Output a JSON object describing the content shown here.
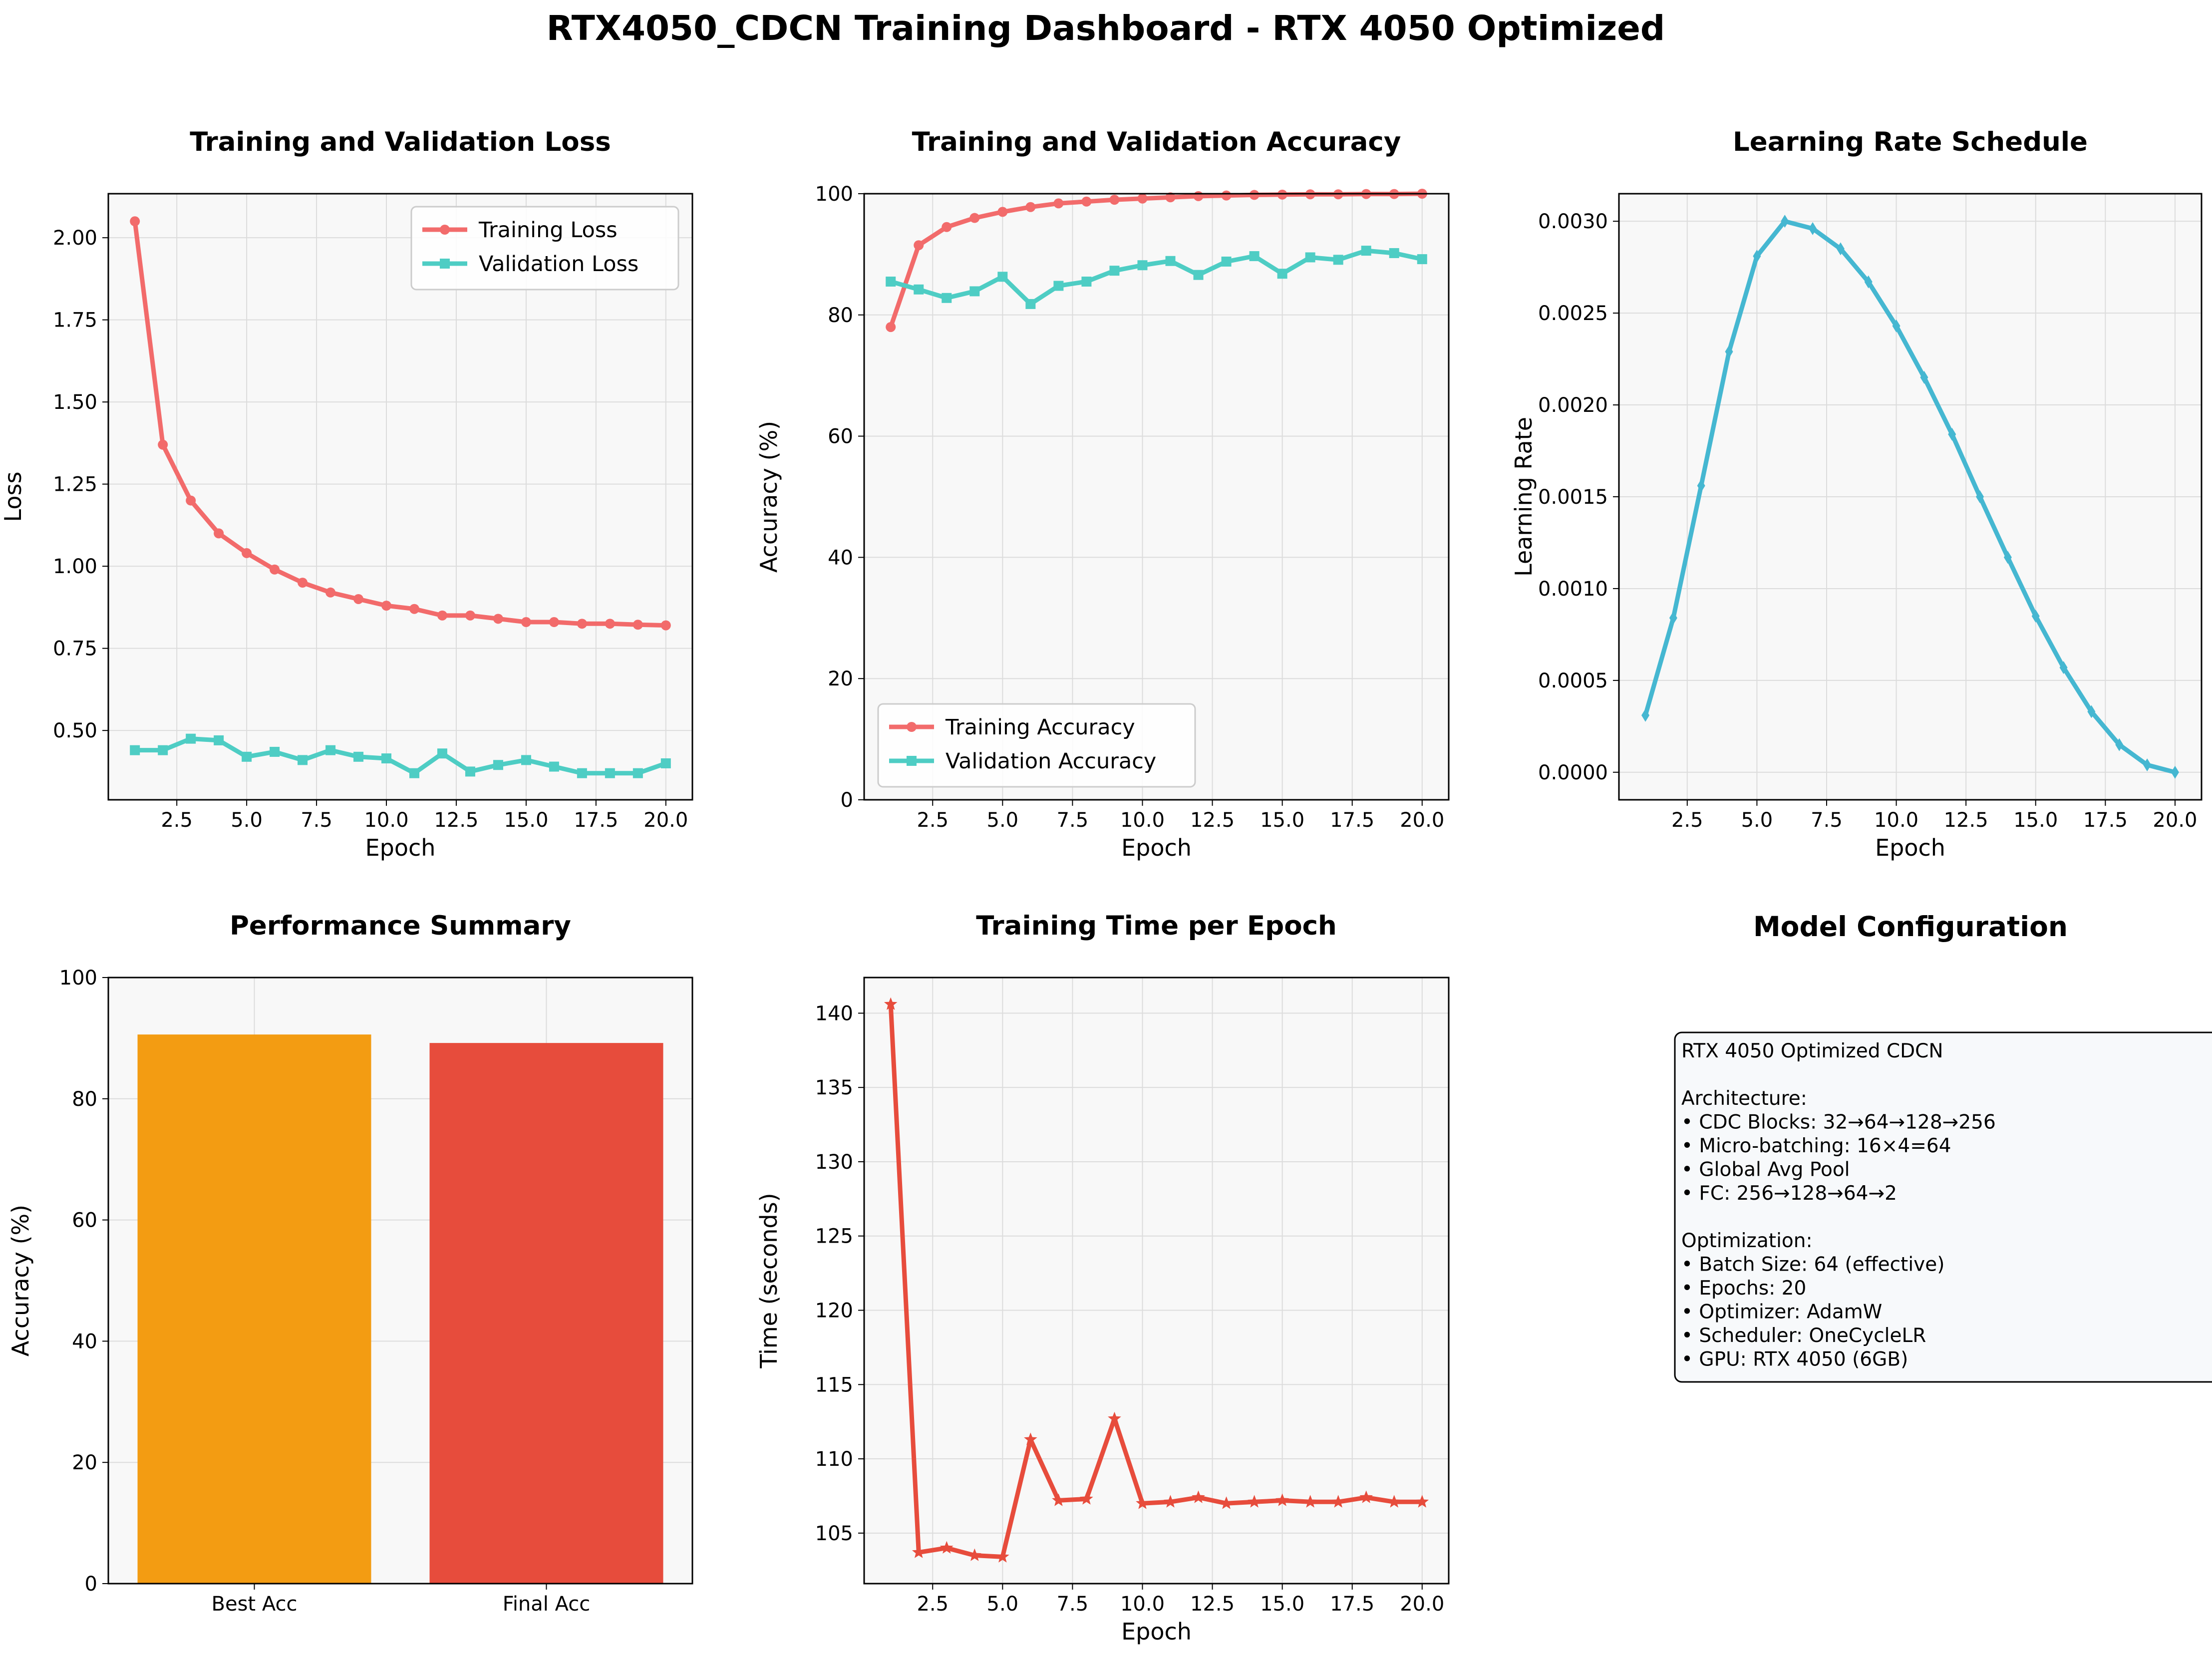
{
  "suptitle": "RTX4050_CDCN Training Dashboard - RTX 4050 Optimized",
  "colors": {
    "train": "#f26b6b",
    "val": "#4ecdc4",
    "lr": "#45b7d1",
    "time": "#e74c3c",
    "best_bar": "#f39c12",
    "final_bar": "#e74c3c",
    "axes_bg": "#f8f8f8",
    "grid": "#dcdcdc"
  },
  "chart_data": [
    {
      "id": "loss",
      "type": "line",
      "title": "Training and Validation Loss",
      "xlabel": "Epoch",
      "ylabel": "Loss",
      "xlim": [
        0.05,
        20.95
      ],
      "ylim": [
        0.289,
        2.134
      ],
      "xticks": [
        "2.5",
        "5.0",
        "7.5",
        "10.0",
        "12.5",
        "15.0",
        "17.5",
        "20.0"
      ],
      "yticks": [
        "0.50",
        "0.75",
        "1.00",
        "1.25",
        "1.50",
        "1.75",
        "2.00"
      ],
      "grid": true,
      "legend": "upper right",
      "x": [
        1,
        2,
        3,
        4,
        5,
        6,
        7,
        8,
        9,
        10,
        11,
        12,
        13,
        14,
        15,
        16,
        17,
        18,
        19,
        20
      ],
      "series": [
        {
          "name": "Training Loss",
          "marker": "circle",
          "color_key": "train",
          "values": [
            2.05,
            1.37,
            1.2,
            1.1,
            1.04,
            0.99,
            0.95,
            0.92,
            0.9,
            0.88,
            0.87,
            0.85,
            0.85,
            0.84,
            0.83,
            0.83,
            0.825,
            0.825,
            0.822,
            0.82
          ]
        },
        {
          "name": "Validation Loss",
          "marker": "square",
          "color_key": "val",
          "values": [
            0.44,
            0.44,
            0.475,
            0.47,
            0.42,
            0.435,
            0.41,
            0.44,
            0.42,
            0.415,
            0.37,
            0.43,
            0.375,
            0.395,
            0.41,
            0.39,
            0.37,
            0.37,
            0.37,
            0.4
          ]
        }
      ]
    },
    {
      "id": "acc",
      "type": "line",
      "title": "Training and Validation Accuracy",
      "xlabel": "Epoch",
      "ylabel": "Accuracy (%)",
      "xlim": [
        0.05,
        20.95
      ],
      "ylim": [
        0,
        100
      ],
      "xticks": [
        "2.5",
        "5.0",
        "7.5",
        "10.0",
        "12.5",
        "15.0",
        "17.5",
        "20.0"
      ],
      "yticks": [
        "0",
        "20",
        "40",
        "60",
        "80",
        "100"
      ],
      "grid": true,
      "legend": "lower left",
      "x": [
        1,
        2,
        3,
        4,
        5,
        6,
        7,
        8,
        9,
        10,
        11,
        12,
        13,
        14,
        15,
        16,
        17,
        18,
        19,
        20
      ],
      "series": [
        {
          "name": "Training Accuracy",
          "marker": "circle",
          "color_key": "train",
          "values": [
            78.0,
            91.5,
            94.5,
            96.0,
            97.0,
            97.8,
            98.4,
            98.7,
            99.0,
            99.2,
            99.4,
            99.6,
            99.7,
            99.8,
            99.85,
            99.9,
            99.9,
            99.95,
            99.95,
            100.0
          ]
        },
        {
          "name": "Validation Accuracy",
          "marker": "square",
          "color_key": "val",
          "values": [
            85.5,
            84.2,
            82.8,
            83.9,
            86.3,
            81.8,
            84.8,
            85.5,
            87.3,
            88.2,
            88.9,
            86.6,
            88.8,
            89.7,
            86.8,
            89.5,
            89.1,
            90.6,
            90.2,
            89.2
          ]
        }
      ]
    },
    {
      "id": "lr",
      "type": "line",
      "title": "Learning Rate Schedule",
      "xlabel": "Epoch",
      "ylabel": "Learning Rate",
      "xlim": [
        0.05,
        20.95
      ],
      "ylim": [
        -0.00015,
        0.00315
      ],
      "xticks": [
        "2.5",
        "5.0",
        "7.5",
        "10.0",
        "12.5",
        "15.0",
        "17.5",
        "20.0"
      ],
      "yticks": [
        "0.0000",
        "0.0005",
        "0.0010",
        "0.0015",
        "0.0020",
        "0.0025",
        "0.0030"
      ],
      "grid": true,
      "legend": "none",
      "x": [
        1,
        2,
        3,
        4,
        5,
        6,
        7,
        8,
        9,
        10,
        11,
        12,
        13,
        14,
        15,
        16,
        17,
        18,
        19,
        20
      ],
      "series": [
        {
          "name": "",
          "marker": "diamond",
          "color_key": "lr",
          "values": [
            0.00031,
            0.00084,
            0.00156,
            0.00229,
            0.00281,
            0.003,
            0.00296,
            0.00285,
            0.00267,
            0.00243,
            0.00215,
            0.00184,
            0.0015,
            0.00117,
            0.00085,
            0.00057,
            0.00033,
            0.00015,
            4e-05,
            0.0
          ]
        }
      ]
    },
    {
      "id": "perf",
      "type": "bar",
      "title": "Performance Summary",
      "xlabel": "",
      "ylabel": "Accuracy (%)",
      "ylim": [
        0,
        100
      ],
      "yticks": [
        "0",
        "20",
        "40",
        "60",
        "80",
        "100"
      ],
      "grid": true,
      "categories": [
        "Best Acc",
        "Final Acc"
      ],
      "values": [
        90.6,
        89.2
      ],
      "bar_color_keys": [
        "best_bar",
        "final_bar"
      ]
    },
    {
      "id": "time",
      "type": "line",
      "title": "Training Time per Epoch",
      "xlabel": "Epoch",
      "ylabel": "Time (seconds)",
      "xlim": [
        0.05,
        20.95
      ],
      "ylim": [
        101.6,
        142.4
      ],
      "xticks": [
        "2.5",
        "5.0",
        "7.5",
        "10.0",
        "12.5",
        "15.0",
        "17.5",
        "20.0"
      ],
      "yticks": [
        "105",
        "110",
        "115",
        "120",
        "125",
        "130",
        "135",
        "140"
      ],
      "grid": true,
      "legend": "none",
      "x": [
        1,
        2,
        3,
        4,
        5,
        6,
        7,
        8,
        9,
        10,
        11,
        12,
        13,
        14,
        15,
        16,
        17,
        18,
        19,
        20
      ],
      "series": [
        {
          "name": "",
          "marker": "star",
          "color_key": "time",
          "values": [
            140.6,
            103.7,
            104.0,
            103.5,
            103.4,
            111.3,
            107.2,
            107.3,
            112.7,
            107.0,
            107.1,
            107.4,
            107.0,
            107.1,
            107.2,
            107.1,
            107.1,
            107.4,
            107.1,
            107.1
          ]
        }
      ]
    }
  ],
  "config": {
    "title": "Model Configuration",
    "lines": [
      "RTX 4050 Optimized CDCN",
      "",
      "Architecture:",
      "• CDC Blocks: 32→64→128→256",
      "• Micro-batching: 16×4=64",
      "• Global Avg Pool",
      "• FC: 256→128→64→2",
      "",
      "Optimization:",
      "• Batch Size: 64 (effective)",
      "• Epochs: 20",
      "• Optimizer: AdamW",
      "• Scheduler: OneCycleLR",
      "• GPU: RTX 4050 (6GB)"
    ]
  }
}
